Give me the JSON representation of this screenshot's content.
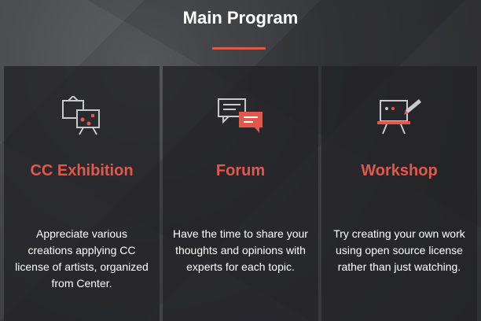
{
  "header": {
    "title": "Main Program"
  },
  "colors": {
    "accent": "#e4574b",
    "icon_gray": "#c9c9c9"
  },
  "programs": [
    {
      "icon": "exhibition-icon",
      "title": "CC Exhibition",
      "description": "Appreciate various creations applying CC license of artists, organized from Center."
    },
    {
      "icon": "forum-chat-icon",
      "title": "Forum",
      "description": "Have the time to share your thoughts and opinions with experts for each topic."
    },
    {
      "icon": "workshop-board-icon",
      "title": "Workshop",
      "description": "Try creating your own work using open source license rather than just watching."
    }
  ]
}
